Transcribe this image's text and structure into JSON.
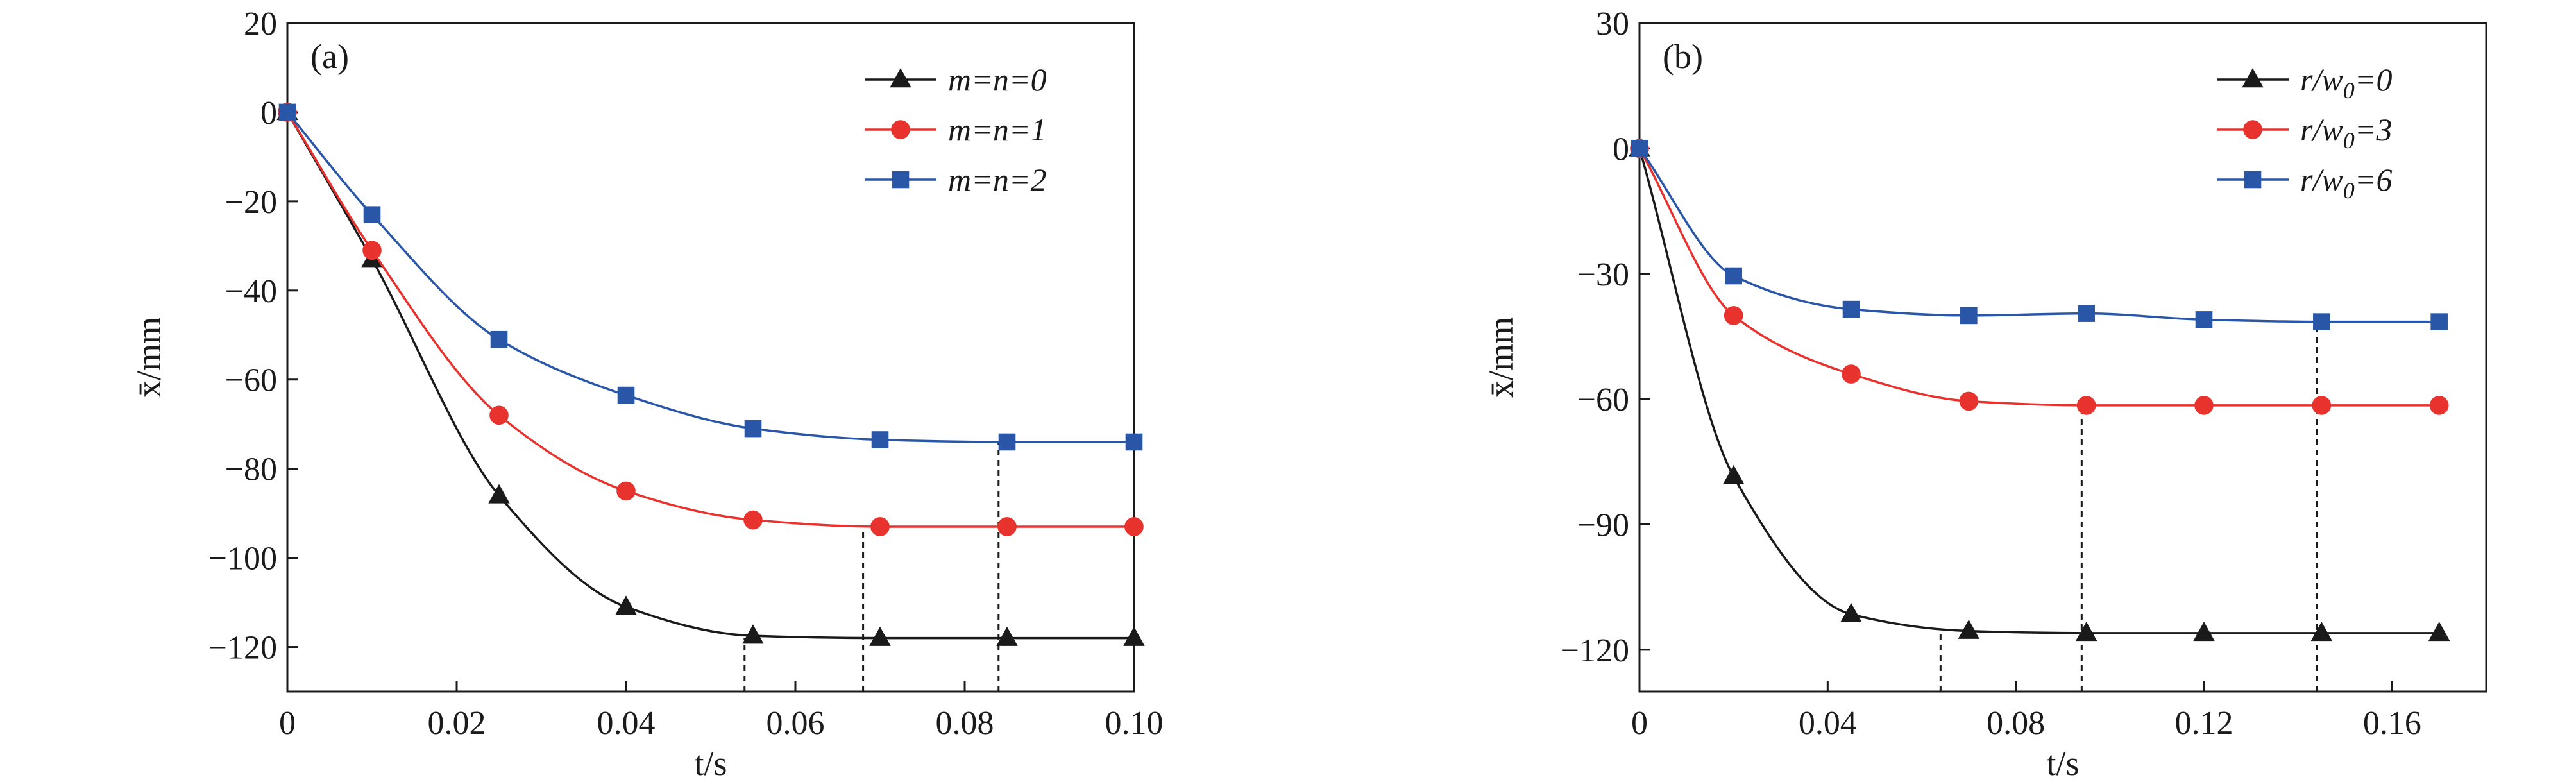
{
  "chart_data": [
    {
      "type": "line",
      "panel_label": "(a)",
      "xlabel": "t/s",
      "ylabel": "x̄/mm",
      "xlim": [
        0,
        0.1
      ],
      "ylim": [
        -130,
        20
      ],
      "xticks": [
        "0",
        "0.02",
        "0.04",
        "0.06",
        "0.08",
        "0.10"
      ],
      "xtick_values": [
        0,
        0.02,
        0.04,
        0.06,
        0.08,
        0.1
      ],
      "yticks": [
        "20",
        "0",
        "−20",
        "−40",
        "−60",
        "−80",
        "−100",
        "−120"
      ],
      "ytick_values": [
        20,
        0,
        -20,
        -40,
        -60,
        -80,
        -100,
        -120
      ],
      "legend_position": "top-right",
      "grid": false,
      "series": [
        {
          "name": "m=n=0",
          "marker": "triangle",
          "color": "#1a1a1a",
          "x": [
            0,
            0.01,
            0.025,
            0.04,
            0.055,
            0.07,
            0.085,
            0.1
          ],
          "y": [
            0,
            -33,
            -86,
            -111,
            -117.5,
            -118,
            -118,
            -118
          ],
          "settle_t": 0.054
        },
        {
          "name": "m=n=1",
          "marker": "circle",
          "color": "#e8322d",
          "x": [
            0,
            0.01,
            0.025,
            0.04,
            0.055,
            0.07,
            0.085,
            0.1
          ],
          "y": [
            0,
            -31,
            -68,
            -85,
            -91.5,
            -93,
            -93,
            -93
          ],
          "settle_t": 0.068
        },
        {
          "name": "m=n=2",
          "marker": "square",
          "color": "#2a56a8",
          "x": [
            0,
            0.01,
            0.025,
            0.04,
            0.055,
            0.07,
            0.085,
            0.1
          ],
          "y": [
            0,
            -23,
            -51,
            -63.5,
            -71,
            -73.5,
            -74,
            -74
          ],
          "settle_t": 0.084
        }
      ]
    },
    {
      "type": "line",
      "panel_label": "(b)",
      "xlabel": "t/s",
      "ylabel": "x̄/mm",
      "xlim": [
        0,
        0.18
      ],
      "ylim": [
        -130,
        30
      ],
      "xticks": [
        "0",
        "0.04",
        "0.08",
        "0.12",
        "0.16"
      ],
      "xtick_values": [
        0,
        0.04,
        0.08,
        0.12,
        0.16
      ],
      "yticks": [
        "30",
        "0",
        "−30",
        "−60",
        "−90",
        "−120"
      ],
      "ytick_values": [
        30,
        0,
        -30,
        -60,
        -90,
        -120
      ],
      "legend_position": "top-right",
      "grid": false,
      "series": [
        {
          "name_parts": [
            "r/w",
            "0",
            "=0"
          ],
          "marker": "triangle",
          "color": "#1a1a1a",
          "x": [
            0,
            0.02,
            0.045,
            0.07,
            0.095,
            0.12,
            0.145,
            0.17
          ],
          "y": [
            0,
            -78.5,
            -111.5,
            -115.5,
            -116,
            -116,
            -116,
            -116
          ],
          "settle_t": 0.064
        },
        {
          "name_parts": [
            "r/w",
            "0",
            "=3"
          ],
          "marker": "circle",
          "color": "#e8322d",
          "x": [
            0,
            0.02,
            0.045,
            0.07,
            0.095,
            0.12,
            0.145,
            0.17
          ],
          "y": [
            0,
            -40,
            -54,
            -60.5,
            -61.5,
            -61.5,
            -61.5,
            -61.5
          ],
          "settle_t": 0.094
        },
        {
          "name_parts": [
            "r/w",
            "0",
            "=6"
          ],
          "marker": "square",
          "color": "#2a56a8",
          "x": [
            0,
            0.02,
            0.045,
            0.07,
            0.095,
            0.12,
            0.145,
            0.17
          ],
          "y": [
            0,
            -30.5,
            -38.5,
            -40,
            -39.5,
            -41,
            -41.5,
            -41.5
          ],
          "settle_t": 0.144
        }
      ]
    }
  ]
}
